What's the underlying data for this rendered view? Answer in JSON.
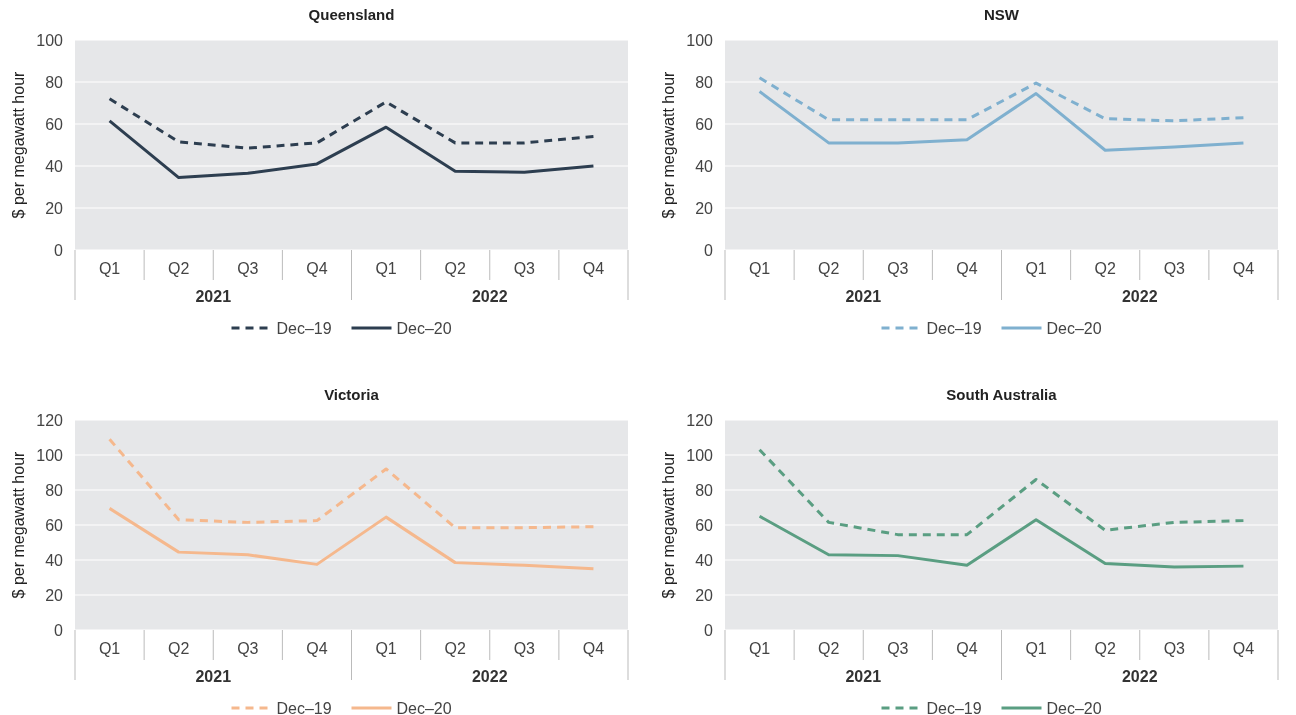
{
  "chart_data": [
    {
      "type": "line",
      "title": "Queensland",
      "ylabel": "$ per megawatt hour",
      "categories": [
        "Q1",
        "Q2",
        "Q3",
        "Q4",
        "Q1",
        "Q2",
        "Q3",
        "Q4"
      ],
      "annotations": [
        "2021",
        "2022"
      ],
      "ylim": [
        0,
        100
      ],
      "yticks": [
        0,
        20,
        40,
        60,
        80,
        100
      ],
      "grid": "y",
      "legend": "bottom",
      "series": [
        {
          "name": "Dec–19",
          "color": "#2d3e50",
          "line_style": "dashed",
          "values": [
            72,
            51.5,
            48.5,
            51,
            70.5,
            51,
            51,
            54
          ]
        },
        {
          "name": "Dec–20",
          "color": "#2d3e50",
          "line_style": "solid",
          "values": [
            61.5,
            34.5,
            36.5,
            41,
            58.5,
            37.5,
            37,
            40
          ]
        }
      ]
    },
    {
      "type": "line",
      "title": "NSW",
      "ylabel": "$ per megawatt hour",
      "categories": [
        "Q1",
        "Q2",
        "Q3",
        "Q4",
        "Q1",
        "Q2",
        "Q3",
        "Q4"
      ],
      "annotations": [
        "2021",
        "2022"
      ],
      "ylim": [
        0,
        100
      ],
      "yticks": [
        0,
        20,
        40,
        60,
        80,
        100
      ],
      "grid": "y",
      "legend": "bottom",
      "series": [
        {
          "name": "Dec–19",
          "color": "#7fb0cf",
          "line_style": "dashed",
          "values": [
            82,
            62,
            62,
            62,
            79.5,
            62.5,
            61.5,
            63
          ]
        },
        {
          "name": "Dec–20",
          "color": "#7fb0cf",
          "line_style": "solid",
          "values": [
            75.5,
            51,
            51,
            52.5,
            74.5,
            47.5,
            49,
            51
          ]
        }
      ]
    },
    {
      "type": "line",
      "title": "Victoria",
      "ylabel": "$ per megawatt hour",
      "categories": [
        "Q1",
        "Q2",
        "Q3",
        "Q4",
        "Q1",
        "Q2",
        "Q3",
        "Q4"
      ],
      "annotations": [
        "2021",
        "2022"
      ],
      "ylim": [
        0,
        120
      ],
      "yticks": [
        0,
        20,
        40,
        60,
        80,
        100,
        120
      ],
      "grid": "y",
      "legend": "bottom",
      "series": [
        {
          "name": "Dec–19",
          "color": "#f5b88d",
          "line_style": "dashed",
          "values": [
            109,
            63,
            61.5,
            62.5,
            92,
            58.5,
            58.5,
            59
          ]
        },
        {
          "name": "Dec–20",
          "color": "#f5b88d",
          "line_style": "solid",
          "values": [
            69.5,
            44.5,
            43,
            37.5,
            64.5,
            38.5,
            37,
            35
          ]
        }
      ]
    },
    {
      "type": "line",
      "title": "South Australia",
      "ylabel": "$ per megawatt hour",
      "categories": [
        "Q1",
        "Q2",
        "Q3",
        "Q4",
        "Q1",
        "Q2",
        "Q3",
        "Q4"
      ],
      "annotations": [
        "2021",
        "2022"
      ],
      "ylim": [
        0,
        120
      ],
      "yticks": [
        0,
        20,
        40,
        60,
        80,
        100,
        120
      ],
      "grid": "y",
      "legend": "bottom",
      "series": [
        {
          "name": "Dec–19",
          "color": "#5a9e82",
          "line_style": "dashed",
          "values": [
            103,
            61.5,
            54.5,
            54.5,
            86,
            57,
            61.5,
            62.5
          ]
        },
        {
          "name": "Dec–20",
          "color": "#5a9e82",
          "line_style": "solid",
          "values": [
            65,
            43,
            42.5,
            37,
            63,
            38,
            36,
            36.5
          ]
        }
      ]
    }
  ]
}
